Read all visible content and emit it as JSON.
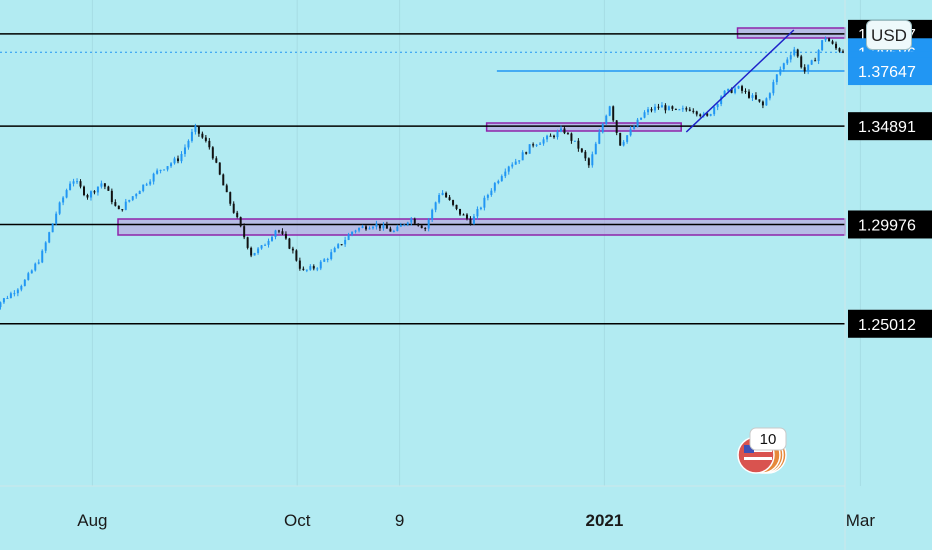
{
  "chart_data": {
    "type": "candlestick",
    "title": "",
    "currency_button": "USD",
    "x_ticks": [
      "Aug",
      "Oct",
      "9",
      "2021",
      "Mar"
    ],
    "y_range": [
      1.23,
      1.398
    ],
    "horizontal_levels": [
      1.39507,
      1.34891,
      1.29976,
      1.25012
    ],
    "price_labels": [
      {
        "text": "1.39507",
        "value": 1.39507,
        "style": "level"
      },
      {
        "text": "1.38586",
        "value": 1.38586,
        "style": "current"
      },
      {
        "text": "03:06:53",
        "value": 1.3792,
        "style": "countdown"
      },
      {
        "text": "1.37647",
        "value": 1.37647,
        "style": "marker"
      },
      {
        "text": "1.34891",
        "value": 1.34891,
        "style": "level"
      },
      {
        "text": "1.29976",
        "value": 1.29976,
        "style": "level"
      },
      {
        "text": "1.25012",
        "value": 1.25012,
        "style": "level"
      }
    ],
    "current_price": 1.38586,
    "marker_line": 1.37647,
    "zones": [
      {
        "from_month": 7.3,
        "to_month": 9.0,
        "low": 1.393,
        "high": 1.398
      },
      {
        "from_month": 4.85,
        "to_month": 6.75,
        "low": 1.3465,
        "high": 1.3505
      },
      {
        "from_month": 1.25,
        "to_month": 9.0,
        "low": 1.2945,
        "high": 1.3025
      }
    ],
    "trendline": {
      "from": [
        6.8,
        1.346
      ],
      "to": [
        7.85,
        1.397
      ]
    },
    "price_path": [
      [
        0.0,
        1.257
      ],
      [
        0.1,
        1.261
      ],
      [
        0.2,
        1.265
      ],
      [
        0.35,
        1.272
      ],
      [
        0.5,
        1.284
      ],
      [
        0.65,
        1.306
      ],
      [
        0.8,
        1.323
      ],
      [
        0.95,
        1.314
      ],
      [
        1.1,
        1.321
      ],
      [
        1.25,
        1.306
      ],
      [
        1.45,
        1.317
      ],
      [
        1.65,
        1.327
      ],
      [
        1.85,
        1.333
      ],
      [
        2.0,
        1.348
      ],
      [
        2.15,
        1.338
      ],
      [
        2.3,
        1.316
      ],
      [
        2.4,
        1.304
      ],
      [
        2.55,
        1.285
      ],
      [
        2.65,
        1.288
      ],
      [
        2.8,
        1.298
      ],
      [
        2.95,
        1.287
      ],
      [
        3.05,
        1.276
      ],
      [
        3.2,
        1.279
      ],
      [
        3.35,
        1.286
      ],
      [
        3.55,
        1.297
      ],
      [
        3.75,
        1.3
      ],
      [
        3.95,
        1.296
      ],
      [
        4.1,
        1.303
      ],
      [
        4.25,
        1.298
      ],
      [
        4.4,
        1.317
      ],
      [
        4.55,
        1.307
      ],
      [
        4.7,
        1.301
      ],
      [
        4.9,
        1.318
      ],
      [
        5.05,
        1.329
      ],
      [
        5.15,
        1.332
      ],
      [
        5.3,
        1.34
      ],
      [
        5.45,
        1.343
      ],
      [
        5.6,
        1.347
      ],
      [
        5.75,
        1.338
      ],
      [
        5.85,
        1.329
      ],
      [
        5.95,
        1.345
      ],
      [
        6.05,
        1.36
      ],
      [
        6.15,
        1.34
      ],
      [
        6.25,
        1.346
      ],
      [
        6.4,
        1.356
      ],
      [
        6.55,
        1.359
      ],
      [
        6.7,
        1.356
      ],
      [
        6.85,
        1.358
      ],
      [
        7.0,
        1.353
      ],
      [
        7.15,
        1.365
      ],
      [
        7.3,
        1.368
      ],
      [
        7.45,
        1.363
      ],
      [
        7.55,
        1.359
      ],
      [
        7.7,
        1.376
      ],
      [
        7.85,
        1.388
      ],
      [
        7.95,
        1.376
      ],
      [
        8.05,
        1.382
      ],
      [
        8.15,
        1.394
      ],
      [
        8.25,
        1.388
      ],
      [
        8.35,
        1.386
      ]
    ],
    "event_badge": {
      "count": "10",
      "country": "US"
    }
  }
}
